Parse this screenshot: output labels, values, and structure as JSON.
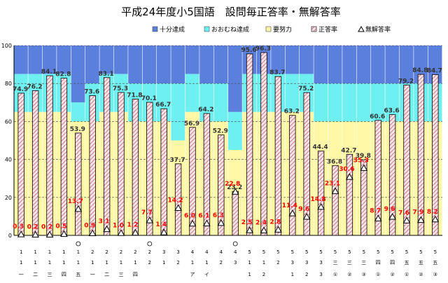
{
  "chart_data": {
    "type": "bar",
    "title": "平成24年度小5国語　設問毎正答率・無解答率",
    "legend": {
      "placement": "top",
      "items": [
        {
          "key": "band_top",
          "label": "十分達成",
          "color": "#5b7fdd"
        },
        {
          "key": "band_mid",
          "label": "おおむね達成",
          "color": "#6ff0f0"
        },
        {
          "key": "band_low",
          "label": "要努力",
          "color": "#fdf7a6"
        },
        {
          "key": "correct",
          "label": "正答率",
          "color": "#d7a3ad"
        },
        {
          "key": "noanswer",
          "label": "無解答率",
          "color": "#ffffff"
        }
      ]
    },
    "ylim": [
      0,
      100
    ],
    "yticks": [
      0,
      20,
      40,
      60,
      80,
      100
    ],
    "grid": true,
    "categories": [
      {
        "top": "1",
        "mid": "1",
        "bottom": "一",
        "circle": false
      },
      {
        "top": "1",
        "mid": "1",
        "bottom": "二",
        "circle": false
      },
      {
        "top": "1",
        "mid": "1",
        "bottom": "三",
        "circle": false
      },
      {
        "top": "1",
        "mid": "1",
        "bottom": "四",
        "circle": false
      },
      {
        "top": "1",
        "mid": "1",
        "bottom": "五",
        "circle": true
      },
      {
        "top": "2",
        "mid": "1",
        "bottom": "一",
        "circle": false
      },
      {
        "top": "2",
        "mid": "1",
        "bottom": "二",
        "circle": false
      },
      {
        "top": "2",
        "mid": "1",
        "bottom": "三",
        "circle": false
      },
      {
        "top": "2",
        "mid": "1",
        "bottom": "四",
        "circle": false
      },
      {
        "top": "2",
        "mid": "2",
        "bottom": "",
        "circle": true
      },
      {
        "top": "3",
        "mid": "1",
        "bottom": "",
        "circle": false
      },
      {
        "top": "3",
        "mid": "2",
        "bottom": "",
        "circle": false
      },
      {
        "top": "4",
        "mid": "1",
        "bottom": "ア",
        "circle": false
      },
      {
        "top": "4",
        "mid": "1",
        "bottom": "イ",
        "circle": false
      },
      {
        "top": "4",
        "mid": "2",
        "bottom": "",
        "circle": false
      },
      {
        "top": "4",
        "mid": "3",
        "bottom": "",
        "circle": true
      },
      {
        "top": "5",
        "mid": "1",
        "bottom": "1",
        "circle": false
      },
      {
        "top": "5",
        "mid": "1",
        "bottom": "2",
        "circle": false
      },
      {
        "top": "5",
        "mid": "2",
        "bottom": "",
        "circle": false
      },
      {
        "top": "5",
        "mid": "3",
        "bottom": "1",
        "circle": false
      },
      {
        "top": "5",
        "mid": "3",
        "bottom": "2",
        "circle": false
      },
      {
        "top": "5",
        "mid": "3",
        "bottom": "3",
        "circle": false
      },
      {
        "top": "5",
        "mid": "三",
        "bottom": "①",
        "circle": false
      },
      {
        "top": "5",
        "mid": "三",
        "bottom": "②",
        "circle": false
      },
      {
        "top": "5",
        "mid": "三",
        "bottom": "③",
        "circle": false
      },
      {
        "top": "5",
        "mid": "四",
        "bottom": "①",
        "circle": false
      },
      {
        "top": "5",
        "mid": "四",
        "bottom": "②",
        "circle": false
      },
      {
        "top": "5",
        "mid": "五",
        "bottom": "①",
        "circle": false
      },
      {
        "top": "5",
        "mid": "五",
        "bottom": "②",
        "circle": false
      },
      {
        "top": "5",
        "mid": "五",
        "bottom": "③",
        "circle": false
      }
    ],
    "bands": [
      {
        "low": 65,
        "mid": 85
      },
      {
        "low": 65,
        "mid": 85
      },
      {
        "low": 65,
        "mid": 85
      },
      {
        "low": 65,
        "mid": 85
      },
      {
        "low": 60,
        "mid": 70
      },
      {
        "low": 60,
        "mid": 80
      },
      {
        "low": 65,
        "mid": 85
      },
      {
        "low": 65,
        "mid": 85
      },
      {
        "low": 60,
        "mid": 80
      },
      {
        "low": 60,
        "mid": 80
      },
      {
        "low": 60,
        "mid": 80
      },
      {
        "low": 50,
        "mid": 80
      },
      {
        "low": 65,
        "mid": 85
      },
      {
        "low": 60,
        "mid": 80
      },
      {
        "low": 60,
        "mid": 80
      },
      {
        "low": 45,
        "mid": 65
      },
      {
        "low": 65,
        "mid": 85
      },
      {
        "low": 65,
        "mid": 85
      },
      {
        "low": 65,
        "mid": 85
      },
      {
        "low": 65,
        "mid": 85
      },
      {
        "low": 65,
        "mid": 85
      },
      {
        "low": 60,
        "mid": 80
      },
      {
        "low": 60,
        "mid": 80
      },
      {
        "low": 60,
        "mid": 80
      },
      {
        "low": 60,
        "mid": 80
      },
      {
        "low": 60,
        "mid": 80
      },
      {
        "low": 60,
        "mid": 80
      },
      {
        "low": 60,
        "mid": 80
      },
      {
        "low": 60,
        "mid": 80
      },
      {
        "low": 60,
        "mid": 80
      }
    ],
    "series": [
      {
        "name": "正答率",
        "values": [
          74.9,
          76.2,
          84.1,
          82.8,
          53.9,
          73.6,
          83.1,
          75.3,
          71.8,
          70.1,
          66.7,
          37.7,
          56.9,
          64.2,
          52.9,
          23.2,
          95.6,
          96.3,
          83.7,
          63.2,
          75.2,
          44.4,
          36.8,
          42.7,
          39.8,
          60.6,
          63.6,
          79.2,
          84.8,
          84.7
        ]
      },
      {
        "name": "無解答率",
        "values": [
          0.3,
          0.2,
          0.2,
          0.5,
          13.7,
          0.9,
          3.1,
          1.0,
          1.2,
          7.7,
          1.4,
          14.2,
          6.0,
          6.1,
          6.3,
          22.8,
          2.5,
          2.4,
          2.8,
          11.4,
          9.6,
          14.8,
          23.1,
          30.6,
          35.3,
          8.7,
          9.6,
          7.6,
          7.9,
          8.2
        ]
      }
    ]
  }
}
